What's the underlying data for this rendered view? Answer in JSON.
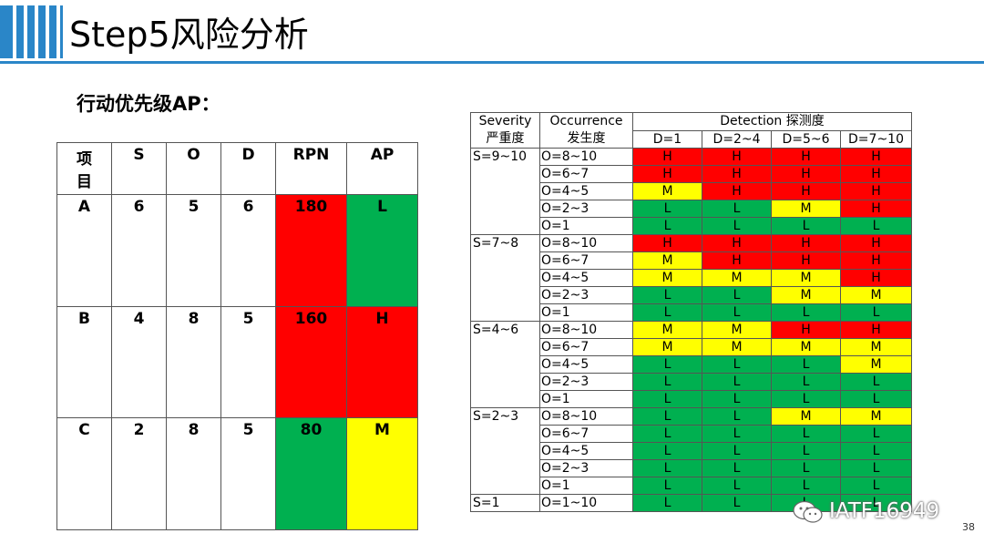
{
  "title": "Step5风险分析",
  "subtitle": "行动优先级AP：",
  "colors": {
    "accent": "#2a86c8",
    "H": "#ff0000",
    "M": "#ffff00",
    "L": "#00b050"
  },
  "ap_table": {
    "headers": [
      "项\n目",
      "S",
      "O",
      "D",
      "RPN",
      "AP"
    ],
    "rows": [
      {
        "item": "A",
        "s": "6",
        "o": "5",
        "d": "6",
        "rpn": "180",
        "rpn_color": "red",
        "ap": "L",
        "ap_color": "green"
      },
      {
        "item": "B",
        "s": "4",
        "o": "8",
        "d": "5",
        "rpn": "160",
        "rpn_color": "red",
        "ap": "H",
        "ap_color": "red"
      },
      {
        "item": "C",
        "s": "2",
        "o": "8",
        "d": "5",
        "rpn": "80",
        "rpn_color": "green",
        "ap": "M",
        "ap_color": "yellow"
      }
    ]
  },
  "risk_table": {
    "header_severity": "Severity\n严重度",
    "header_occurrence": "Occurrence\n发生度",
    "header_detection": "Detection 探测度",
    "detection_cols": [
      "D=1",
      "D=2~4",
      "D=5~6",
      "D=7~10"
    ],
    "groups": [
      {
        "severity": "S=9~10",
        "rows": [
          {
            "occ": "O=8~10",
            "ap": [
              "H",
              "H",
              "H",
              "H"
            ]
          },
          {
            "occ": "O=6~7",
            "ap": [
              "H",
              "H",
              "H",
              "H"
            ]
          },
          {
            "occ": "O=4~5",
            "ap": [
              "M",
              "H",
              "H",
              "H"
            ]
          },
          {
            "occ": "O=2~3",
            "ap": [
              "L",
              "L",
              "M",
              "H"
            ]
          },
          {
            "occ": "O=1",
            "ap": [
              "L",
              "L",
              "L",
              "L"
            ]
          }
        ]
      },
      {
        "severity": "S=7~8",
        "rows": [
          {
            "occ": "O=8~10",
            "ap": [
              "H",
              "H",
              "H",
              "H"
            ]
          },
          {
            "occ": "O=6~7",
            "ap": [
              "M",
              "H",
              "H",
              "H"
            ]
          },
          {
            "occ": "O=4~5",
            "ap": [
              "M",
              "M",
              "M",
              "H"
            ]
          },
          {
            "occ": "O=2~3",
            "ap": [
              "L",
              "L",
              "M",
              "M"
            ]
          },
          {
            "occ": "O=1",
            "ap": [
              "L",
              "L",
              "L",
              "L"
            ]
          }
        ]
      },
      {
        "severity": "S=4~6",
        "rows": [
          {
            "occ": "O=8~10",
            "ap": [
              "M",
              "M",
              "H",
              "H"
            ]
          },
          {
            "occ": "O=6~7",
            "ap": [
              "M",
              "M",
              "M",
              "M"
            ]
          },
          {
            "occ": "O=4~5",
            "ap": [
              "L",
              "L",
              "L",
              "M"
            ]
          },
          {
            "occ": "O=2~3",
            "ap": [
              "L",
              "L",
              "L",
              "L"
            ]
          },
          {
            "occ": "O=1",
            "ap": [
              "L",
              "L",
              "L",
              "L"
            ]
          }
        ]
      },
      {
        "severity": "S=2~3",
        "rows": [
          {
            "occ": "O=8~10",
            "ap": [
              "L",
              "L",
              "M",
              "M"
            ]
          },
          {
            "occ": "O=6~7",
            "ap": [
              "L",
              "L",
              "L",
              "L"
            ]
          },
          {
            "occ": "O=4~5",
            "ap": [
              "L",
              "L",
              "L",
              "L"
            ]
          },
          {
            "occ": "O=2~3",
            "ap": [
              "L",
              "L",
              "L",
              "L"
            ]
          },
          {
            "occ": "O=1",
            "ap": [
              "L",
              "L",
              "L",
              "L"
            ]
          }
        ]
      },
      {
        "severity": "S=1",
        "rows": [
          {
            "occ": "O=1~10",
            "ap": [
              "L",
              "L",
              "L",
              "L"
            ]
          }
        ]
      }
    ]
  },
  "watermark": "IATF16949",
  "watermark_icon": "wechat-icon",
  "page_number": "38"
}
